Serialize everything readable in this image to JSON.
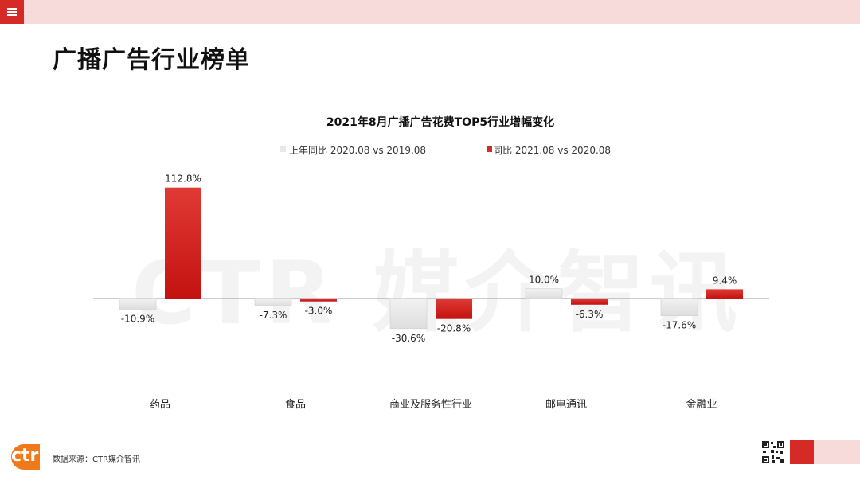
{
  "header": {
    "menu_icon": "hamburger-menu-icon"
  },
  "page_title": "广播广告行业榜单",
  "watermark": "CTR 媒介智讯",
  "source": "数据来源：CTR媒介智讯",
  "logo_text": "ctr",
  "colors": {
    "accent": "#d52a26",
    "gray_series": "#e8e8e8",
    "topbar": "#f7dada"
  },
  "chart_data": {
    "type": "bar",
    "title": "2021年8月广播广告花费TOP5行业增幅变化",
    "categories": [
      "药品",
      "食品",
      "商业及服务性行业",
      "邮电通讯",
      "金融业"
    ],
    "series": [
      {
        "name": "上年同比 2020.08 vs 2019.08",
        "values": [
          -10.9,
          -7.3,
          -30.6,
          10.0,
          -17.6
        ],
        "labels": [
          "-10.9%",
          "-7.3%",
          "-30.6%",
          "10.0%",
          "-17.6%"
        ],
        "color": "#e8e8e8"
      },
      {
        "name": "同比 2021.08 vs 2020.08",
        "values": [
          112.8,
          -3.0,
          -20.8,
          -6.3,
          9.4
        ],
        "labels": [
          "112.8%",
          "-3.0%",
          "-20.8%",
          "-6.3%",
          "9.4%"
        ],
        "color": "#d52a26"
      }
    ],
    "unit": "%",
    "legend": "top",
    "grid": false
  }
}
